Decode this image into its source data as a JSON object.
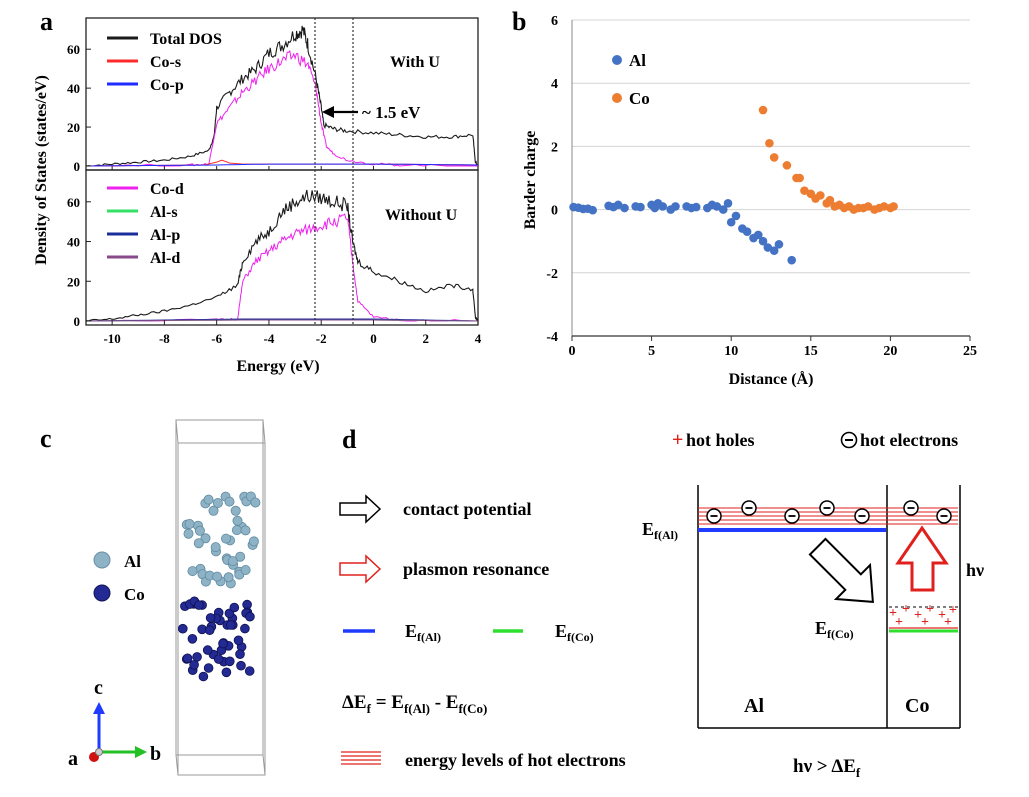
{
  "panel_labels": {
    "a": "a",
    "b": "b",
    "c": "c",
    "d": "d"
  },
  "colors": {
    "total": "#1a1a1a",
    "co_s": "#ff2a2a",
    "co_p": "#1f2bff",
    "co_d": "#ee22ee",
    "al_s": "#33e066",
    "al_p": "#1a2e99",
    "al_d": "#8a4a8a",
    "al_dot": "#4472c4",
    "co_dot": "#ed7d31",
    "al_atom": "#8fb3c6",
    "co_atom": "#242a94",
    "red": "#e0201c",
    "blue": "#1f3bff",
    "green": "#2ee02e"
  },
  "panel_a": {
    "xlabel": "Energy (eV)",
    "ylabel": "Density of States (states/eV)",
    "x_ticks": [
      "-10",
      "-8",
      "-6",
      "-4",
      "-2",
      "0",
      "2",
      "4"
    ],
    "y_ticks_top": [
      "0",
      "20",
      "40",
      "60"
    ],
    "y_ticks_bottom": [
      "0",
      "20",
      "40",
      "60"
    ],
    "label_with_u": "With U",
    "label_without_u": "Without U",
    "annotation": "~ 1.5 eV",
    "legend_top": [
      "Total DOS",
      "Co-s",
      "Co-p"
    ],
    "legend_bottom": [
      "Co-d",
      "Al-s",
      "Al-p",
      "Al-d"
    ]
  },
  "chart_data": [
    {
      "type": "line",
      "title": "",
      "xlabel": "Energy (eV)",
      "ylabel": "Density of States (states/eV)",
      "xlim": [
        -11,
        4
      ],
      "subplots": [
        {
          "label": "With U",
          "ylim": [
            0,
            75
          ],
          "series": [
            {
              "name": "Total DOS",
              "x": [
                -11,
                -10,
                -9,
                -8,
                -7,
                -6.3,
                -6.1,
                -6.0,
                -5.5,
                -5,
                -4.5,
                -4,
                -3.5,
                -3,
                -2.7,
                -2.5,
                -2.2,
                -2.0,
                -1.9,
                -1.5,
                -1,
                0,
                1,
                2,
                3,
                3.8,
                3.9,
                4
              ],
              "y": [
                0,
                1,
                2,
                3,
                5,
                8,
                15,
                30,
                38,
                45,
                50,
                58,
                62,
                68,
                70,
                62,
                45,
                30,
                21,
                19,
                18,
                17,
                16,
                15,
                15,
                16,
                2,
                0
              ]
            },
            {
              "name": "Co-d",
              "x": [
                -11,
                -7,
                -6.3,
                -6.0,
                -5.5,
                -5,
                -4.5,
                -4,
                -3.5,
                -3,
                -2.5,
                -2.2,
                -2.0,
                -1.8,
                -1.5,
                -1,
                0,
                1,
                4
              ],
              "y": [
                0,
                0.5,
                1,
                22,
                30,
                38,
                44,
                50,
                54,
                57,
                52,
                40,
                22,
                10,
                6,
                3,
                1,
                0.5,
                0
              ]
            },
            {
              "name": "Co-s",
              "x": [
                -11,
                -6.5,
                -6,
                -5.8,
                -5.5,
                -5,
                -2,
                0,
                4
              ],
              "y": [
                0,
                0.5,
                2,
                3,
                1.5,
                1,
                1,
                1,
                0.5
              ]
            },
            {
              "name": "Co-p",
              "x": [
                -11,
                -6,
                -4,
                -2,
                0,
                4
              ],
              "y": [
                0,
                0.5,
                1,
                1,
                1,
                0.5
              ]
            }
          ]
        },
        {
          "label": "Without U",
          "ylim": [
            0,
            75
          ],
          "series": [
            {
              "name": "Total DOS",
              "x": [
                -11,
                -10,
                -9,
                -8,
                -7,
                -6,
                -5.2,
                -5,
                -4.5,
                -4,
                -3.5,
                -3,
                -2.5,
                -2,
                -1.5,
                -1,
                -0.8,
                -0.6,
                0,
                1,
                2,
                3,
                3.8,
                3.9,
                4
              ],
              "y": [
                0,
                1,
                3,
                5,
                8,
                12,
                18,
                30,
                40,
                45,
                55,
                60,
                63,
                62,
                60,
                58,
                40,
                30,
                25,
                20,
                15,
                18,
                16,
                2,
                0
              ]
            },
            {
              "name": "Co-d",
              "x": [
                -11,
                -6,
                -5.2,
                -5,
                -4.5,
                -4,
                -3.5,
                -3,
                -2.5,
                -2,
                -1.5,
                -1,
                -0.8,
                -0.6,
                0,
                1,
                4
              ],
              "y": [
                0,
                0.5,
                1,
                20,
                30,
                35,
                40,
                44,
                46,
                48,
                50,
                52,
                30,
                10,
                2,
                0.5,
                0
              ]
            },
            {
              "name": "Al-s",
              "x": [
                -11,
                -5,
                0,
                4
              ],
              "y": [
                0,
                0.5,
                0.5,
                0
              ]
            },
            {
              "name": "Al-p",
              "x": [
                -11,
                -5,
                0,
                4
              ],
              "y": [
                0,
                1,
                1,
                0
              ]
            },
            {
              "name": "Al-d",
              "x": [
                -11,
                -5,
                0,
                4
              ],
              "y": [
                0,
                0.5,
                0.5,
                0
              ]
            }
          ]
        }
      ]
    },
    {
      "type": "scatter",
      "title": "",
      "xlabel": "Distance (Å)",
      "ylabel": "Barder charge",
      "xlim": [
        0,
        25
      ],
      "ylim": [
        -4,
        6
      ],
      "x_ticks": [
        "0",
        "5",
        "10",
        "15",
        "20",
        "25"
      ],
      "y_ticks": [
        "-4",
        "-2",
        "0",
        "2",
        "4",
        "6"
      ],
      "series": [
        {
          "name": "Al",
          "x": [
            0.1,
            0.4,
            0.7,
            1.0,
            1.3,
            2.3,
            2.6,
            2.9,
            3.3,
            4.0,
            4.3,
            5.0,
            5.2,
            5.4,
            5.7,
            6.2,
            6.5,
            7.2,
            7.5,
            7.8,
            8.5,
            8.8,
            9.1,
            9.5,
            9.8,
            10.0,
            10.3,
            10.7,
            11.0,
            11.4,
            11.7,
            12.0,
            12.3,
            12.7,
            13.0,
            13.8
          ],
          "y": [
            0.08,
            0.06,
            0.02,
            0.03,
            -0.02,
            0.12,
            0.08,
            0.15,
            0.05,
            0.1,
            0.08,
            0.15,
            0.05,
            0.2,
            0.1,
            0.0,
            0.1,
            0.1,
            0.05,
            0.08,
            0.05,
            0.15,
            0.1,
            0.0,
            0.2,
            -0.4,
            -0.2,
            -0.6,
            -0.7,
            -0.9,
            -0.8,
            -1.0,
            -1.2,
            -1.3,
            -1.1,
            -1.6
          ]
        },
        {
          "name": "Co",
          "x": [
            12.0,
            12.4,
            12.7,
            13.5,
            14.1,
            14.3,
            14.6,
            15.0,
            15.3,
            15.6,
            16.0,
            16.2,
            16.5,
            16.8,
            17.1,
            17.4,
            17.7,
            18.0,
            18.3,
            18.6,
            19.0,
            19.3,
            19.6,
            20.0,
            20.2
          ],
          "y": [
            3.15,
            2.1,
            1.65,
            1.4,
            1.0,
            1.0,
            0.6,
            0.5,
            0.35,
            0.45,
            0.2,
            0.3,
            0.1,
            0.15,
            0.05,
            0.1,
            0.0,
            0.05,
            0.05,
            0.1,
            0.0,
            0.05,
            0.1,
            0.05,
            0.1
          ]
        }
      ]
    }
  ],
  "panel_c": {
    "legend": [
      "Al",
      "Co"
    ],
    "axes": {
      "c": "c",
      "a": "a",
      "b": "b"
    }
  },
  "panel_d": {
    "legend_hot_holes": "hot holes",
    "legend_hot_electrons": "hot electrons",
    "contact_potential": "contact potential",
    "plasmon_resonance": "plasmon resonance",
    "ef_al": "E",
    "ef_al_sub": "f(Al)",
    "ef_co": "E",
    "ef_co_sub": "f(Co)",
    "delta_eq_lhs": "ΔE",
    "delta_eq_lhs_sub": "f",
    "delta_eq_eq": " = E",
    "delta_eq_mid_sub": "f(Al)",
    "delta_eq_minus": " - E",
    "delta_eq_rhs_sub": "f(Co)",
    "energy_levels": "energy levels of hot electrons",
    "box_al": "Al",
    "box_co": "Co",
    "hv": "hν",
    "condition": "hν > ΔE",
    "condition_sub": "f",
    "plus": "+",
    "minus": "−"
  }
}
